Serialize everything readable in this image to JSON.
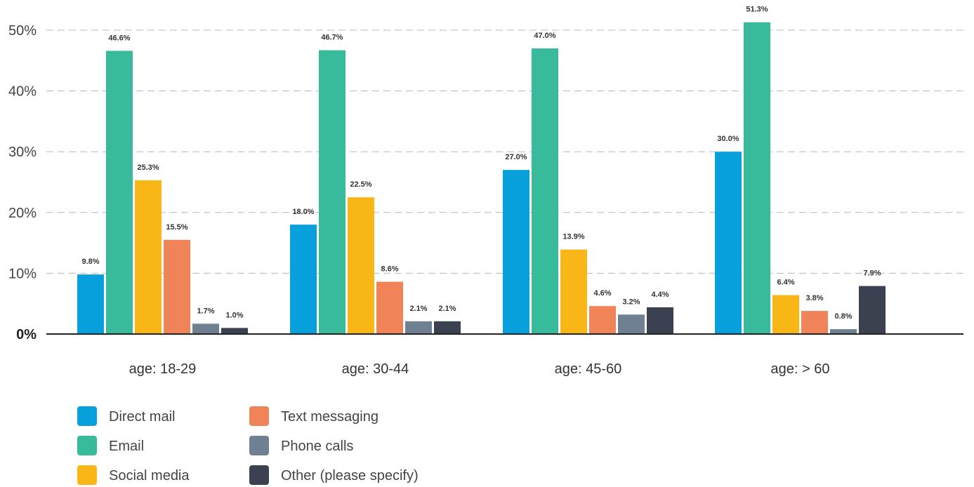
{
  "chart_data": {
    "type": "bar",
    "categories": [
      "age: 18-29",
      "age: 30-44",
      "age: 45-60",
      "age: > 60"
    ],
    "series": [
      {
        "name": "Direct mail",
        "color": "#079FDC",
        "values": [
          9.8,
          18.0,
          27.0,
          30.0
        ],
        "labels": [
          "9.8%",
          "18.0%",
          "27.0%",
          "30.0%"
        ]
      },
      {
        "name": "Email",
        "color": "#37BB9A",
        "values": [
          46.6,
          46.7,
          47.0,
          51.3
        ],
        "labels": [
          "46.6%",
          "46.7%",
          "47.0%",
          "51.3%"
        ]
      },
      {
        "name": "Social media",
        "color": "#F9B617",
        "values": [
          25.3,
          22.5,
          13.9,
          6.4
        ],
        "labels": [
          "25.3%",
          "22.5%",
          "13.9%",
          "6.4%"
        ]
      },
      {
        "name": "Text messaging",
        "color": "#F18358",
        "values": [
          15.5,
          8.6,
          4.6,
          3.8
        ],
        "labels": [
          "15.5%",
          "8.6%",
          "4.6%",
          "3.8%"
        ]
      },
      {
        "name": "Phone calls",
        "color": "#6F8092",
        "values": [
          1.7,
          2.1,
          3.2,
          0.8
        ],
        "labels": [
          "1.7%",
          "2.1%",
          "3.2%",
          "0.8%"
        ]
      },
      {
        "name": "Other (please specify)",
        "color": "#3B4151",
        "values": [
          1.0,
          2.1,
          4.4,
          7.9
        ],
        "labels": [
          "1.0%",
          "2.1%",
          "4.4%",
          "7.9%"
        ]
      }
    ],
    "ylim": [
      0,
      50
    ],
    "yticks": [
      {
        "value": 0,
        "label": "0%"
      },
      {
        "value": 10,
        "label": "10%"
      },
      {
        "value": 20,
        "label": "20%"
      },
      {
        "value": 30,
        "label": "30%"
      },
      {
        "value": 40,
        "label": "40%"
      },
      {
        "value": 50,
        "label": "50%"
      }
    ],
    "grid": "horizontal dashed",
    "legend_position": "bottom-left"
  }
}
